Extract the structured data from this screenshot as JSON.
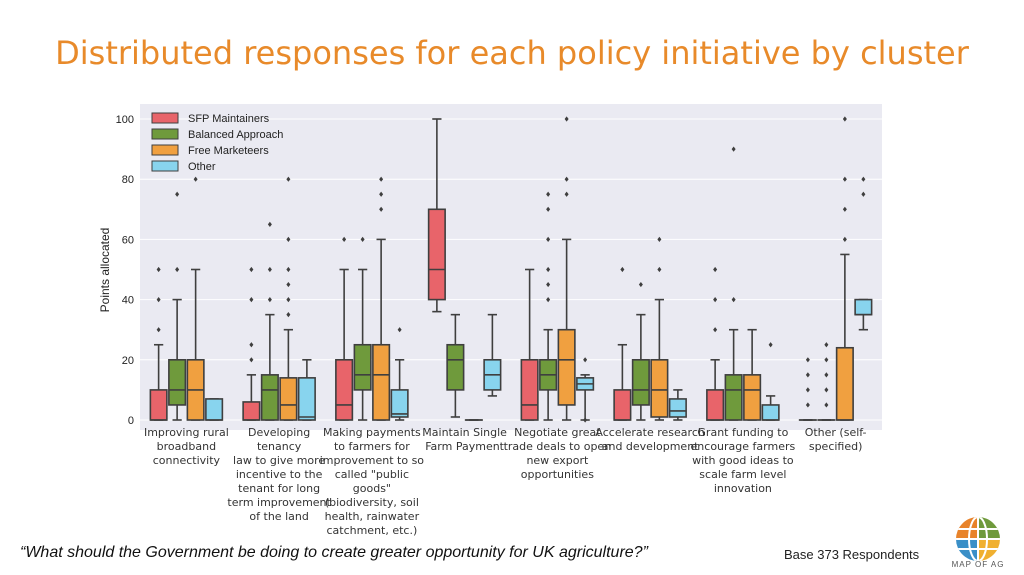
{
  "page": {
    "title": "Distributed responses for each policy initiative by cluster"
  },
  "footer": {
    "question": "“What should the Government be doing to create greater opportunity for UK agriculture?”",
    "base": "Base 373 Respondents",
    "logo_text": "MAP OF AG"
  },
  "colors": {
    "background": "#eaeaf2",
    "title": "#e88a2a"
  },
  "chart_data": {
    "type": "box",
    "title": "",
    "xlabel": "",
    "ylabel": "Points allocated",
    "ylim": [
      0,
      100
    ],
    "yticks": [
      0,
      20,
      40,
      60,
      80,
      100
    ],
    "grid": true,
    "legend_position": "top-left",
    "categories": [
      "Improving rural\nbroadband\nconnectivity",
      "Developing tenancy\nlaw to give more\nincentive to the\ntenant for long\nterm improvement\nof the land",
      "Making payments\nto farmers for\nimprovement to so\ncalled \"public\ngoods\"\n(biodiversity, soil\nhealth, rainwater\ncatchment, etc.)",
      "Maintain Single\nFarm Payment",
      "Negotiate great\ntrade deals to open\nnew export\nopportunities",
      "Accelerate research\nand development",
      "Grant funding to\nencourage farmers\nwith good ideas to\nscale farm level\ninnovation",
      "Other (self-\nspecified)"
    ],
    "series": [
      {
        "name": "SFP Maintainers",
        "color": "#e8646a",
        "boxes": [
          {
            "whislo": 0,
            "q1": 0,
            "med": 0,
            "q3": 10,
            "whishi": 25,
            "fliers": [
              30,
              40,
              50
            ]
          },
          {
            "whislo": 0,
            "q1": 0,
            "med": 0,
            "q3": 6,
            "whishi": 15,
            "fliers": [
              20,
              25,
              40,
              50
            ]
          },
          {
            "whislo": 0,
            "q1": 0,
            "med": 5,
            "q3": 20,
            "whishi": 50,
            "fliers": [
              60
            ]
          },
          {
            "whislo": 36,
            "q1": 40,
            "med": 50,
            "q3": 70,
            "whishi": 100,
            "fliers": []
          },
          {
            "whislo": 0,
            "q1": 0,
            "med": 5,
            "q3": 20,
            "whishi": 50,
            "fliers": []
          },
          {
            "whislo": 0,
            "q1": 0,
            "med": 0,
            "q3": 10,
            "whishi": 25,
            "fliers": [
              50
            ]
          },
          {
            "whislo": 0,
            "q1": 0,
            "med": 0,
            "q3": 10,
            "whishi": 20,
            "fliers": [
              30,
              40,
              50
            ]
          },
          {
            "whislo": 0,
            "q1": 0,
            "med": 0,
            "q3": 0,
            "whishi": 0,
            "fliers": [
              5,
              10,
              15,
              20
            ]
          }
        ]
      },
      {
        "name": "Balanced Approach",
        "color": "#6f9a3c",
        "boxes": [
          {
            "whislo": 0,
            "q1": 5,
            "med": 10,
            "q3": 20,
            "whishi": 40,
            "fliers": [
              50,
              75
            ]
          },
          {
            "whislo": 0,
            "q1": 0,
            "med": 10,
            "q3": 15,
            "whishi": 35,
            "fliers": [
              40,
              50,
              65
            ]
          },
          {
            "whislo": 0,
            "q1": 10,
            "med": 15,
            "q3": 25,
            "whishi": 50,
            "fliers": [
              60
            ]
          },
          {
            "whislo": 1,
            "q1": 10,
            "med": 20,
            "q3": 25,
            "whishi": 35,
            "fliers": []
          },
          {
            "whislo": 0,
            "q1": 10,
            "med": 15,
            "q3": 20,
            "whishi": 30,
            "fliers": [
              40,
              45,
              50,
              60,
              70,
              75
            ]
          },
          {
            "whislo": 0,
            "q1": 5,
            "med": 10,
            "q3": 20,
            "whishi": 35,
            "fliers": [
              45
            ]
          },
          {
            "whislo": 0,
            "q1": 0,
            "med": 10,
            "q3": 15,
            "whishi": 30,
            "fliers": [
              40,
              90
            ]
          },
          {
            "whislo": 0,
            "q1": 0,
            "med": 0,
            "q3": 0,
            "whishi": 0,
            "fliers": [
              5,
              10,
              15,
              20,
              25
            ]
          }
        ]
      },
      {
        "name": "Free Marketeers",
        "color": "#f0a040",
        "boxes": [
          {
            "whislo": 0,
            "q1": 0,
            "med": 10,
            "q3": 20,
            "whishi": 50,
            "fliers": [
              80
            ]
          },
          {
            "whislo": 0,
            "q1": 0,
            "med": 5,
            "q3": 14,
            "whishi": 30,
            "fliers": [
              35,
              40,
              45,
              50,
              60,
              80
            ]
          },
          {
            "whislo": 0,
            "q1": 0,
            "med": 15,
            "q3": 25,
            "whishi": 60,
            "fliers": [
              70,
              75,
              80
            ]
          },
          {
            "whislo": 0,
            "q1": 0,
            "med": 0,
            "q3": 0,
            "whishi": 0,
            "fliers": []
          },
          {
            "whislo": 0,
            "q1": 5,
            "med": 20,
            "q3": 30,
            "whishi": 60,
            "fliers": [
              75,
              80,
              100
            ]
          },
          {
            "whislo": 0,
            "q1": 1,
            "med": 10,
            "q3": 20,
            "whishi": 40,
            "fliers": [
              50,
              60
            ]
          },
          {
            "whislo": 0,
            "q1": 0,
            "med": 10,
            "q3": 15,
            "whishi": 30,
            "fliers": []
          },
          {
            "whislo": 0,
            "q1": 0,
            "med": 0,
            "q3": 24,
            "whishi": 55,
            "fliers": [
              60,
              70,
              80,
              100
            ]
          }
        ]
      },
      {
        "name": "Other",
        "color": "#88d4ee",
        "boxes": [
          {
            "whislo": 0,
            "q1": 0,
            "med": 0,
            "q3": 7,
            "whishi": 7,
            "fliers": []
          },
          {
            "whislo": 0,
            "q1": 0,
            "med": 1,
            "q3": 14,
            "whishi": 20,
            "fliers": []
          },
          {
            "whislo": 0,
            "q1": 1,
            "med": 2,
            "q3": 10,
            "whishi": 20,
            "fliers": [
              30
            ]
          },
          {
            "whislo": 8,
            "q1": 10,
            "med": 15,
            "q3": 20,
            "whishi": 35,
            "fliers": []
          },
          {
            "whislo": 0,
            "q1": 10,
            "med": 12,
            "q3": 14,
            "whishi": 15,
            "fliers": [
              0,
              20
            ]
          },
          {
            "whislo": 0,
            "q1": 1,
            "med": 3,
            "q3": 7,
            "whishi": 10,
            "fliers": []
          },
          {
            "whislo": 0,
            "q1": 0,
            "med": 0,
            "q3": 5,
            "whishi": 8,
            "fliers": [
              25
            ]
          },
          {
            "whislo": 30,
            "q1": 35,
            "med": 35,
            "q3": 40,
            "whishi": 40,
            "fliers": [
              80,
              75
            ]
          }
        ]
      }
    ]
  }
}
